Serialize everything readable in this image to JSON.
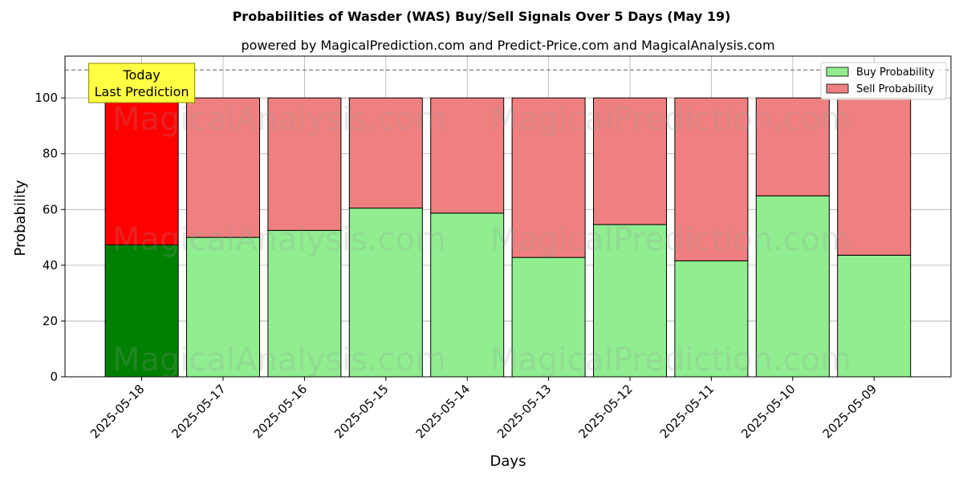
{
  "chart_data": {
    "type": "bar",
    "stacked": true,
    "title": "Probabilities of Wasder (WAS) Buy/Sell Signals Over 5 Days (May 19)",
    "subtitle": "powered by MagicalPrediction.com and Predict-Price.com and MagicalAnalysis.com",
    "xlabel": "Days",
    "ylabel": "Probability",
    "ylim": [
      0,
      115
    ],
    "yticks": [
      0,
      20,
      40,
      60,
      80,
      100
    ],
    "grid": true,
    "legend_position": "top-right",
    "categories": [
      "2025-05-18",
      "2025-05-17",
      "2025-05-16",
      "2025-05-15",
      "2025-05-14",
      "2025-05-13",
      "2025-05-12",
      "2025-05-11",
      "2025-05-10",
      "2025-05-09"
    ],
    "series": [
      {
        "name": "Buy Probability",
        "values": [
          47.3,
          50.0,
          52.5,
          60.5,
          58.7,
          42.8,
          54.6,
          41.6,
          64.9,
          43.6
        ],
        "color": "#90ee90",
        "highlight_color": "#008000"
      },
      {
        "name": "Sell Probability",
        "values": [
          52.7,
          50.0,
          47.5,
          39.5,
          41.3,
          57.2,
          45.4,
          58.4,
          35.1,
          56.4
        ],
        "color": "#f08080",
        "highlight_color": "#ff0000"
      }
    ],
    "highlight_index": 0,
    "reference_line": {
      "y": 110,
      "style": "dashed",
      "color": "#808080"
    },
    "annotation": {
      "lines": [
        "Today",
        "Last Prediction"
      ],
      "background": "#ffff44",
      "border": "#8a8a00"
    },
    "watermarks": [
      "MagicalAnalysis.com",
      "MagicalPrediction.com"
    ]
  }
}
